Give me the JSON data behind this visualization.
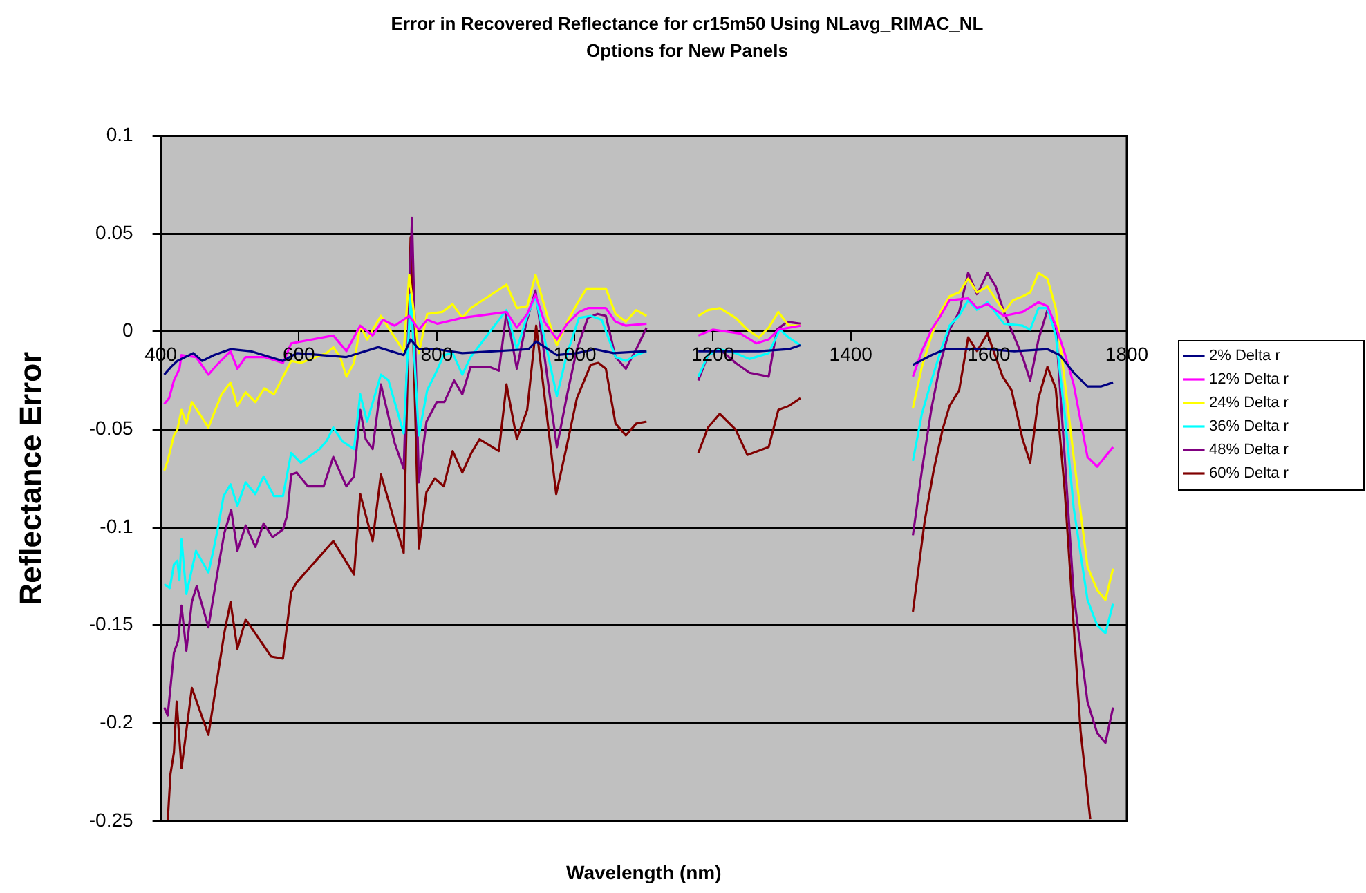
{
  "chart_data": {
    "type": "line",
    "title": "Error in Recovered Reflectance for cr15m50 Using NLavg_RIMAC_NL",
    "subtitle": "Options for New Panels",
    "xlabel": "Wavelength (nm)",
    "ylabel": "Reflectance Error",
    "xlim": [
      400,
      1800
    ],
    "xticks": [
      400,
      600,
      800,
      1000,
      1200,
      1400,
      1600,
      1800
    ],
    "ylim": [
      -0.25,
      0.1
    ],
    "yticks": [
      -0.25,
      -0.2,
      -0.15,
      -0.1,
      -0.05,
      0,
      0.05,
      0.1
    ],
    "grid": "y",
    "legend": "right",
    "marker": "none",
    "line_style": "solid",
    "series": [
      {
        "name": "2% Delta r",
        "color": "#000080",
        "x": [
          405,
          415,
          424,
          447,
          460,
          477,
          501,
          530,
          577,
          597,
          669,
          715,
          752,
          762,
          774,
          800,
          837,
          933,
          944,
          974,
          1003,
          1029,
          1056,
          1104,
          1140,
          1179,
          1200,
          1267,
          1310,
          1327,
          1400,
          1490,
          1517,
          1537,
          1570,
          1597,
          1637,
          1685,
          1703,
          1723,
          1743,
          1763,
          1780
        ],
        "values": [
          -0.022,
          -0.018,
          -0.015,
          -0.011,
          -0.015,
          -0.012,
          -0.009,
          -0.01,
          -0.015,
          -0.011,
          -0.013,
          -0.008,
          -0.012,
          -0.004,
          -0.009,
          -0.009,
          -0.011,
          -0.009,
          -0.005,
          -0.012,
          -0.011,
          -0.009,
          -0.011,
          -0.01,
          null,
          -0.01,
          -0.01,
          -0.01,
          -0.009,
          -0.007,
          null,
          -0.017,
          -0.012,
          -0.009,
          -0.009,
          -0.009,
          -0.01,
          -0.009,
          -0.012,
          -0.021,
          -0.028,
          -0.028,
          -0.026
        ]
      },
      {
        "name": "12% Delta r",
        "color": "#ff00ff",
        "x": [
          405,
          412,
          419,
          427,
          430,
          451,
          469,
          484,
          501,
          511,
          523,
          550,
          577,
          589,
          650,
          669,
          689,
          707,
          722,
          739,
          760,
          774,
          786,
          801,
          837,
          901,
          916,
          931,
          943,
          956,
          974,
          989,
          1006,
          1019,
          1045,
          1059,
          1074,
          1104,
          1140,
          1179,
          1200,
          1240,
          1263,
          1281,
          1295,
          1327,
          1400,
          1490,
          1503,
          1517,
          1530,
          1543,
          1570,
          1583,
          1598,
          1610,
          1622,
          1649,
          1672,
          1685,
          1697,
          1710,
          1723,
          1743,
          1757,
          1780
        ],
        "values": [
          -0.037,
          -0.034,
          -0.025,
          -0.019,
          -0.012,
          -0.013,
          -0.022,
          -0.016,
          -0.01,
          -0.019,
          -0.013,
          -0.013,
          -0.016,
          -0.006,
          -0.002,
          -0.01,
          0.003,
          -0.002,
          0.006,
          0.003,
          0.008,
          0.001,
          0.006,
          0.004,
          0.007,
          0.01,
          0.002,
          0.009,
          0.019,
          0.005,
          -0.004,
          0.004,
          0.01,
          0.012,
          0.012,
          0.005,
          0.003,
          0.004,
          null,
          -0.002,
          0.001,
          -0.001,
          -0.006,
          -0.004,
          0.001,
          0.003,
          null,
          -0.023,
          -0.01,
          0.001,
          0.008,
          0.016,
          0.017,
          0.012,
          0.014,
          0.011,
          0.008,
          0.01,
          0.015,
          0.013,
          0.003,
          -0.011,
          -0.027,
          -0.064,
          -0.069,
          -0.059
        ]
      },
      {
        "name": "24% Delta r",
        "color": "#ffff00",
        "x": [
          405,
          410,
          419,
          424,
          430,
          437,
          445,
          469,
          488,
          501,
          511,
          523,
          537,
          550,
          564,
          589,
          603,
          640,
          650,
          660,
          669,
          680,
          689,
          699,
          719,
          752,
          760,
          774,
          786,
          808,
          823,
          837,
          849,
          901,
          916,
          931,
          943,
          960,
          974,
          989,
          1003,
          1017,
          1045,
          1059,
          1074,
          1089,
          1104,
          1140,
          1179,
          1193,
          1210,
          1233,
          1250,
          1267,
          1281,
          1295,
          1310,
          1327,
          1400,
          1490,
          1503,
          1517,
          1530,
          1543,
          1557,
          1570,
          1583,
          1598,
          1622,
          1635,
          1649,
          1660,
          1672,
          1685,
          1697,
          1710,
          1723,
          1743,
          1757,
          1769,
          1780
        ],
        "values": [
          -0.071,
          -0.066,
          -0.053,
          -0.05,
          -0.04,
          -0.047,
          -0.036,
          -0.049,
          -0.032,
          -0.026,
          -0.038,
          -0.031,
          -0.036,
          -0.029,
          -0.032,
          -0.015,
          -0.016,
          -0.011,
          -0.008,
          -0.013,
          -0.023,
          -0.016,
          0.003,
          -0.004,
          0.008,
          -0.01,
          0.029,
          -0.011,
          0.009,
          0.01,
          0.014,
          0.007,
          0.012,
          0.024,
          0.012,
          0.013,
          0.029,
          0.008,
          -0.007,
          0.005,
          0.014,
          0.022,
          0.022,
          0.009,
          0.005,
          0.011,
          0.008,
          null,
          0.008,
          0.011,
          0.012,
          0.007,
          0.001,
          -0.003,
          0.002,
          0.01,
          0.003,
          0.003,
          null,
          -0.039,
          -0.018,
          -0.002,
          0.01,
          0.018,
          0.02,
          0.027,
          0.02,
          0.023,
          0.01,
          0.016,
          0.018,
          0.02,
          0.03,
          0.027,
          0.012,
          -0.025,
          -0.064,
          -0.12,
          -0.132,
          -0.137,
          -0.121
        ]
      },
      {
        "name": "36% Delta r",
        "color": "#00ffff",
        "x": [
          405,
          413,
          419,
          424,
          427,
          430,
          437,
          451,
          469,
          476,
          484,
          491,
          501,
          511,
          523,
          537,
          549,
          564,
          577,
          589,
          603,
          630,
          640,
          650,
          663,
          680,
          689,
          699,
          719,
          730,
          752,
          762,
          774,
          786,
          800,
          810,
          823,
          837,
          849,
          901,
          916,
          930,
          943,
          974,
          989,
          1006,
          1023,
          1039,
          1059,
          1074,
          1089,
          1104,
          1140,
          1179,
          1193,
          1210,
          1233,
          1253,
          1281,
          1297,
          1310,
          1327,
          1400,
          1490,
          1503,
          1517,
          1530,
          1543,
          1557,
          1570,
          1583,
          1598,
          1622,
          1649,
          1660,
          1672,
          1685,
          1697,
          1710,
          1723,
          1743,
          1757,
          1769,
          1780
        ],
        "values": [
          -0.129,
          -0.131,
          -0.119,
          -0.117,
          -0.127,
          -0.106,
          -0.134,
          -0.112,
          -0.123,
          -0.112,
          -0.098,
          -0.084,
          -0.078,
          -0.089,
          -0.077,
          -0.083,
          -0.074,
          -0.084,
          -0.084,
          -0.062,
          -0.067,
          -0.06,
          -0.056,
          -0.049,
          -0.056,
          -0.06,
          -0.032,
          -0.046,
          -0.022,
          -0.025,
          -0.052,
          0.019,
          -0.053,
          -0.03,
          -0.02,
          -0.012,
          -0.011,
          -0.022,
          -0.013,
          0.011,
          -0.009,
          0.007,
          0.018,
          -0.033,
          -0.011,
          0.007,
          0.008,
          0.006,
          -0.013,
          -0.015,
          -0.012,
          -0.01,
          null,
          -0.023,
          -0.012,
          -0.009,
          -0.011,
          -0.014,
          -0.011,
          0.001,
          -0.003,
          -0.007,
          null,
          -0.066,
          -0.042,
          -0.025,
          -0.01,
          0.003,
          0.008,
          0.016,
          0.011,
          0.015,
          0.004,
          0.003,
          0.001,
          0.012,
          0.012,
          -0.002,
          -0.042,
          -0.09,
          -0.137,
          -0.15,
          -0.154,
          -0.139
        ]
      },
      {
        "name": "48% Delta r",
        "color": "#800080",
        "x": [
          405,
          410,
          419,
          425,
          430,
          437,
          445,
          452,
          469,
          476,
          484,
          492,
          502,
          511,
          523,
          537,
          549,
          562,
          577,
          583,
          589,
          597,
          613,
          636,
          650,
          669,
          680,
          689,
          697,
          707,
          719,
          739,
          752,
          764,
          774,
          785,
          800,
          811,
          825,
          837,
          849,
          876,
          890,
          901,
          916,
          930,
          943,
          974,
          989,
          1003,
          1019,
          1033,
          1045,
          1059,
          1074,
          1089,
          1104,
          1140,
          1179,
          1193,
          1210,
          1233,
          1253,
          1281,
          1293,
          1308,
          1327,
          1400,
          1490,
          1503,
          1517,
          1530,
          1543,
          1557,
          1570,
          1583,
          1598,
          1610,
          1622,
          1649,
          1660,
          1672,
          1685,
          1697,
          1710,
          1723,
          1743,
          1757,
          1769,
          1780
        ],
        "values": [
          -0.192,
          -0.196,
          -0.164,
          -0.158,
          -0.14,
          -0.163,
          -0.138,
          -0.13,
          -0.151,
          -0.136,
          -0.119,
          -0.103,
          -0.091,
          -0.112,
          -0.099,
          -0.11,
          -0.098,
          -0.105,
          -0.101,
          -0.094,
          -0.073,
          -0.072,
          -0.079,
          -0.079,
          -0.064,
          -0.079,
          -0.074,
          -0.04,
          -0.055,
          -0.06,
          -0.027,
          -0.057,
          -0.07,
          0.058,
          -0.077,
          -0.046,
          -0.036,
          -0.036,
          -0.025,
          -0.032,
          -0.018,
          -0.018,
          -0.02,
          0.01,
          -0.019,
          0.005,
          0.021,
          -0.059,
          -0.032,
          -0.009,
          0.007,
          0.009,
          0.008,
          -0.013,
          -0.019,
          -0.009,
          0.002,
          null,
          -0.025,
          -0.012,
          -0.009,
          -0.016,
          -0.021,
          -0.023,
          0.001,
          0.005,
          0.004,
          null,
          -0.104,
          -0.071,
          -0.039,
          -0.016,
          0.001,
          0.01,
          0.03,
          0.019,
          0.03,
          0.023,
          0.01,
          -0.013,
          -0.025,
          -0.004,
          0.011,
          0.003,
          -0.064,
          -0.134,
          -0.189,
          -0.205,
          -0.21,
          -0.192
        ]
      },
      {
        "name": "60% Delta r",
        "color": "#800000",
        "x": [
          410,
          414,
          419,
          423,
          430,
          445,
          469,
          492,
          501,
          511,
          523,
          560,
          577,
          589,
          597,
          650,
          680,
          689,
          707,
          719,
          752,
          762,
          774,
          785,
          797,
          810,
          823,
          837,
          850,
          862,
          890,
          901,
          916,
          931,
          944,
          973,
          988,
          1003,
          1023,
          1034,
          1045,
          1059,
          1074,
          1089,
          1104,
          1140,
          1179,
          1193,
          1210,
          1233,
          1250,
          1281,
          1295,
          1310,
          1327,
          1400,
          1490,
          1507,
          1520,
          1533,
          1543,
          1557,
          1570,
          1583,
          1598,
          1620,
          1633,
          1649,
          1660,
          1672,
          1685,
          1697,
          1710,
          1723,
          1733,
          1747
        ],
        "values": [
          -0.25,
          -0.226,
          -0.215,
          -0.189,
          -0.223,
          -0.182,
          -0.206,
          -0.154,
          -0.138,
          -0.162,
          -0.147,
          -0.166,
          -0.167,
          -0.133,
          -0.128,
          -0.107,
          -0.124,
          -0.083,
          -0.107,
          -0.073,
          -0.113,
          0.048,
          -0.111,
          -0.082,
          -0.075,
          -0.079,
          -0.061,
          -0.072,
          -0.062,
          -0.055,
          -0.061,
          -0.027,
          -0.055,
          -0.04,
          0.003,
          -0.083,
          -0.059,
          -0.034,
          -0.017,
          -0.016,
          -0.019,
          -0.047,
          -0.053,
          -0.047,
          -0.046,
          null,
          -0.062,
          -0.049,
          -0.042,
          -0.05,
          -0.063,
          -0.059,
          -0.04,
          -0.038,
          -0.034,
          null,
          -0.143,
          -0.097,
          -0.071,
          -0.05,
          -0.038,
          -0.03,
          -0.003,
          -0.01,
          -0.001,
          -0.023,
          -0.03,
          -0.055,
          -0.067,
          -0.034,
          -0.018,
          -0.029,
          -0.081,
          -0.15,
          -0.204,
          -0.249
        ]
      }
    ]
  }
}
